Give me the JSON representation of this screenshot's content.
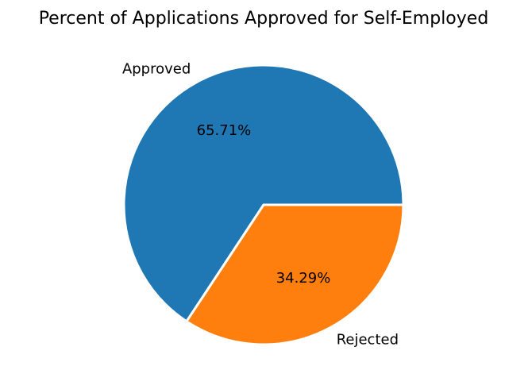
{
  "chart_data": {
    "type": "pie",
    "title": "Percent of Applications Approved for Self-Employed",
    "categories": [
      "Approved",
      "Rejected"
    ],
    "values": [
      65.71,
      34.29
    ],
    "labels": [
      "65.71%",
      "34.29%"
    ],
    "colors": [
      "#1f77b4",
      "#ff7f0e"
    ],
    "start_angle_deg": 0,
    "direction": "counterclockwise",
    "wedge_edge_color": "#ffffff"
  }
}
